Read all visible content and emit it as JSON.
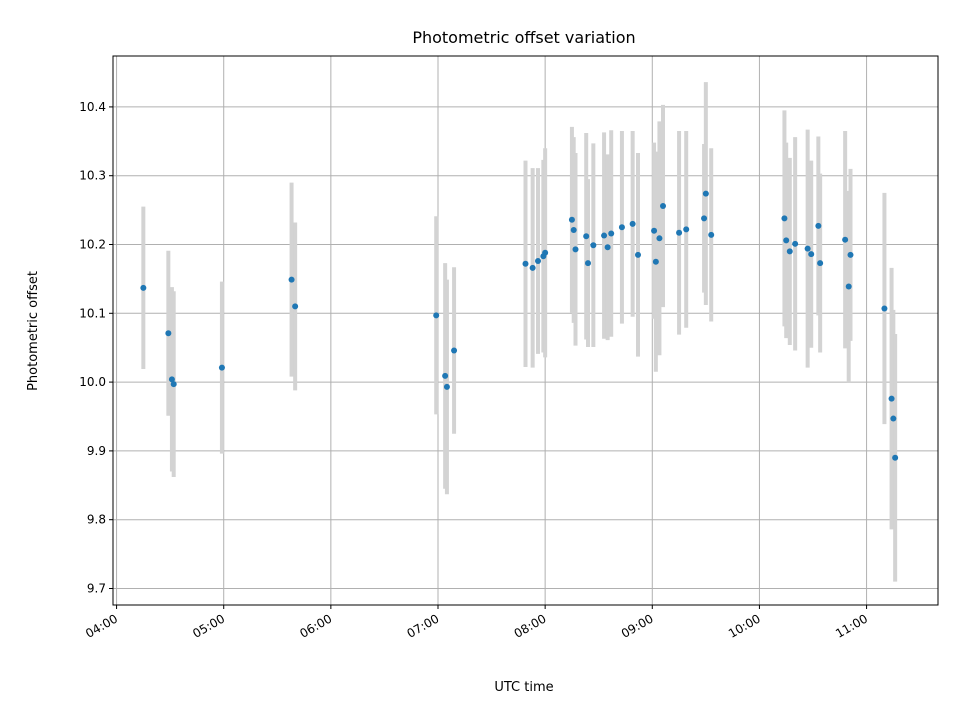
{
  "chart_data": {
    "type": "scatter",
    "title": "Photometric offset variation",
    "xlabel": "UTC time",
    "ylabel": "Photometric offset",
    "x_tick_labels": [
      "04:00",
      "05:00",
      "06:00",
      "07:00",
      "08:00",
      "09:00",
      "10:00",
      "11:00"
    ],
    "y_ticks": [
      9.7,
      9.8,
      9.9,
      10.0,
      10.1,
      10.2,
      10.3,
      10.4
    ],
    "xlim": [
      "03:58",
      "11:40"
    ],
    "ylim": [
      9.676,
      10.474
    ],
    "grid": true,
    "colors": {
      "marker": "#1f77b4",
      "errorbar": "#d3d3d3",
      "grid": "#b0b0b0"
    },
    "points": [
      {
        "t": "04:15",
        "y": 10.137,
        "err": 0.118
      },
      {
        "t": "04:29",
        "y": 10.071,
        "err": 0.12
      },
      {
        "t": "04:31",
        "y": 10.004,
        "err": 0.134
      },
      {
        "t": "04:32",
        "y": 9.997,
        "err": 0.135
      },
      {
        "t": "04:59",
        "y": 10.021,
        "err": 0.125
      },
      {
        "t": "05:38",
        "y": 10.149,
        "err": 0.141
      },
      {
        "t": "05:40",
        "y": 10.11,
        "err": 0.122
      },
      {
        "t": "06:59",
        "y": 10.097,
        "err": 0.144
      },
      {
        "t": "07:04",
        "y": 10.009,
        "err": 0.164
      },
      {
        "t": "07:05",
        "y": 9.993,
        "err": 0.156
      },
      {
        "t": "07:09",
        "y": 10.046,
        "err": 0.121
      },
      {
        "t": "07:49",
        "y": 10.172,
        "err": 0.15
      },
      {
        "t": "07:53",
        "y": 10.166,
        "err": 0.145
      },
      {
        "t": "07:56",
        "y": 10.176,
        "err": 0.135
      },
      {
        "t": "07:59",
        "y": 10.183,
        "err": 0.14
      },
      {
        "t": "08:00",
        "y": 10.188,
        "err": 0.152
      },
      {
        "t": "08:15",
        "y": 10.236,
        "err": 0.135
      },
      {
        "t": "08:16",
        "y": 10.221,
        "err": 0.135
      },
      {
        "t": "08:17",
        "y": 10.193,
        "err": 0.14
      },
      {
        "t": "08:23",
        "y": 10.212,
        "err": 0.15
      },
      {
        "t": "08:24",
        "y": 10.173,
        "err": 0.122
      },
      {
        "t": "08:27",
        "y": 10.199,
        "err": 0.148
      },
      {
        "t": "08:33",
        "y": 10.213,
        "err": 0.15
      },
      {
        "t": "08:35",
        "y": 10.196,
        "err": 0.135
      },
      {
        "t": "08:37",
        "y": 10.216,
        "err": 0.15
      },
      {
        "t": "08:43",
        "y": 10.225,
        "err": 0.14
      },
      {
        "t": "08:49",
        "y": 10.23,
        "err": 0.135
      },
      {
        "t": "08:52",
        "y": 10.185,
        "err": 0.148
      },
      {
        "t": "09:01",
        "y": 10.22,
        "err": 0.128
      },
      {
        "t": "09:02",
        "y": 10.175,
        "err": 0.16
      },
      {
        "t": "09:04",
        "y": 10.209,
        "err": 0.17
      },
      {
        "t": "09:06",
        "y": 10.256,
        "err": 0.147
      },
      {
        "t": "09:15",
        "y": 10.217,
        "err": 0.148
      },
      {
        "t": "09:19",
        "y": 10.222,
        "err": 0.143
      },
      {
        "t": "09:29",
        "y": 10.238,
        "err": 0.108
      },
      {
        "t": "09:30",
        "y": 10.274,
        "err": 0.162
      },
      {
        "t": "09:33",
        "y": 10.214,
        "err": 0.126
      },
      {
        "t": "10:14",
        "y": 10.238,
        "err": 0.157
      },
      {
        "t": "10:15",
        "y": 10.206,
        "err": 0.142
      },
      {
        "t": "10:17",
        "y": 10.19,
        "err": 0.136
      },
      {
        "t": "10:20",
        "y": 10.201,
        "err": 0.155
      },
      {
        "t": "10:27",
        "y": 10.194,
        "err": 0.173
      },
      {
        "t": "10:29",
        "y": 10.186,
        "err": 0.136
      },
      {
        "t": "10:33",
        "y": 10.227,
        "err": 0.13
      },
      {
        "t": "10:34",
        "y": 10.173,
        "err": 0.13
      },
      {
        "t": "10:48",
        "y": 10.207,
        "err": 0.158
      },
      {
        "t": "10:50",
        "y": 10.139,
        "err": 0.139
      },
      {
        "t": "10:51",
        "y": 10.185,
        "err": 0.125
      },
      {
        "t": "11:10",
        "y": 10.107,
        "err": 0.168
      },
      {
        "t": "11:14",
        "y": 9.976,
        "err": 0.19
      },
      {
        "t": "11:15",
        "y": 9.947,
        "err": 0.158
      },
      {
        "t": "11:16",
        "y": 9.89,
        "err": 0.18
      }
    ]
  }
}
